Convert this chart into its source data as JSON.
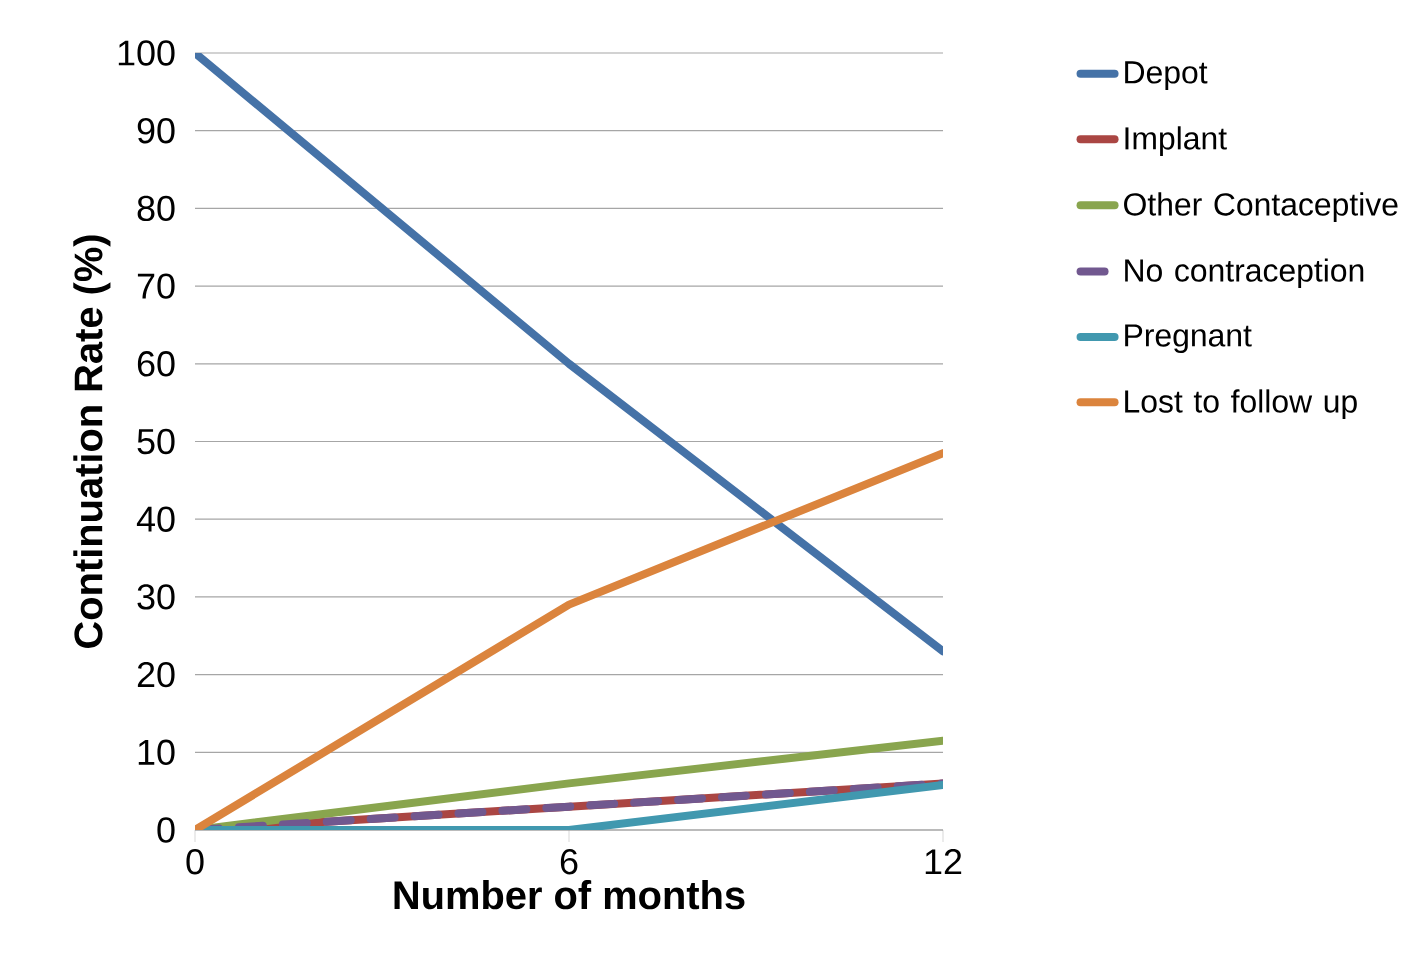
{
  "chart_data": {
    "type": "line",
    "xlabel": "Number of months",
    "ylabel": "Continuation Rate (%)",
    "x": [
      0,
      6,
      12
    ],
    "xlim": [
      0,
      12
    ],
    "xticks": [
      0,
      6,
      12
    ],
    "ylim": [
      0,
      100
    ],
    "yticks": [
      0,
      10,
      20,
      30,
      40,
      50,
      60,
      70,
      80,
      90,
      100
    ],
    "grid": "y",
    "legend": "right",
    "marker": "none",
    "series": [
      {
        "name": "Depot",
        "color": "#4572a7",
        "values": [
          100,
          60,
          23
        ]
      },
      {
        "name": "Implant",
        "color": "#aa4643",
        "values": [
          0,
          3,
          6
        ]
      },
      {
        "name": "Other Contaceptive",
        "color": "#89a54e",
        "values": [
          0,
          6,
          11.5
        ]
      },
      {
        "name": "No contraception",
        "color": "#71588f",
        "values": [
          0,
          3,
          6
        ],
        "line_style": "dashed"
      },
      {
        "name": "Pregnant",
        "color": "#4198af",
        "values": [
          0,
          0,
          5.8
        ]
      },
      {
        "name": "Lost to follow up",
        "color": "#db843d",
        "values": [
          0,
          29,
          48.5
        ]
      }
    ]
  }
}
